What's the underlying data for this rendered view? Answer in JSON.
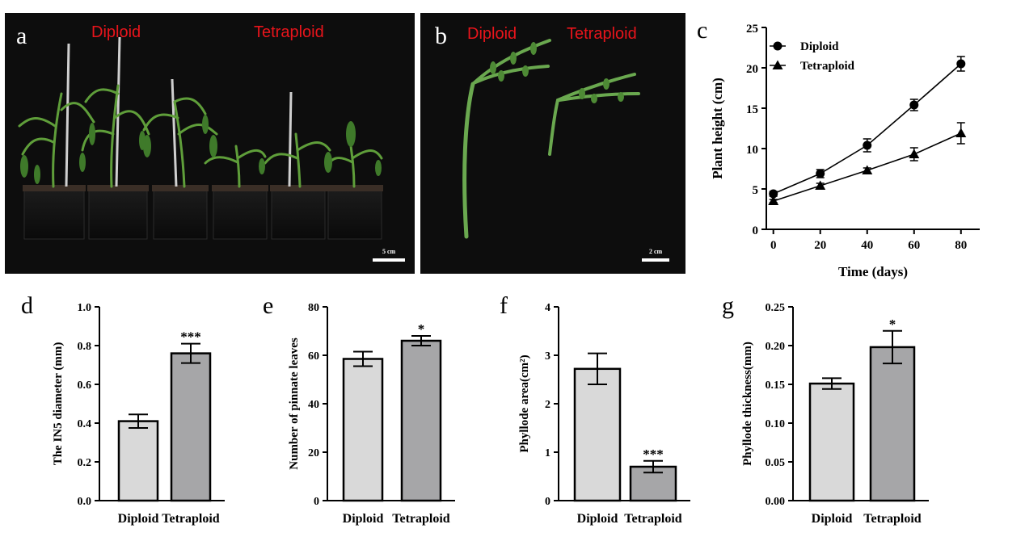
{
  "panel_a": {
    "letter": "a",
    "label_left": "Diploid",
    "label_right": "Tetraploid",
    "scale": "5 cm"
  },
  "panel_b": {
    "letter": "b",
    "label_left": "Diploid",
    "label_right": "Tetraploid",
    "scale": "2 cm"
  },
  "colors": {
    "diploid_bar": "#d9d9d9",
    "tetraploid_bar": "#a6a6a8",
    "photo_background": "#0d0d0d",
    "photo_label": "#e8141b",
    "plant_green": "#5f9e3a"
  },
  "chart_data": [
    {
      "id": "c",
      "letter": "c",
      "type": "line",
      "xlabel": "Time (days)",
      "ylabel": "Plant height (cm)",
      "x": [
        0,
        20,
        40,
        60,
        80
      ],
      "xticks": [
        "0",
        "20",
        "40",
        "60",
        "80"
      ],
      "xlim": [
        -3,
        88
      ],
      "ylim": [
        0,
        25
      ],
      "yticks": [
        "0",
        "5",
        "10",
        "15",
        "20",
        "25"
      ],
      "legend_position": "top-left",
      "series": [
        {
          "name": "Diploid",
          "marker": "circle",
          "values": [
            4.4,
            6.9,
            10.4,
            15.4,
            20.5
          ],
          "errors": [
            0.3,
            0.5,
            0.8,
            0.7,
            0.9
          ]
        },
        {
          "name": "Tetraploid",
          "marker": "triangle",
          "values": [
            3.5,
            5.4,
            7.3,
            9.3,
            11.9
          ],
          "errors": [
            0.2,
            0.3,
            0.3,
            0.8,
            1.3
          ]
        }
      ]
    },
    {
      "id": "d",
      "letter": "d",
      "type": "bar",
      "categories": [
        "Diploid",
        "Tetraploid"
      ],
      "values": [
        0.41,
        0.76
      ],
      "errors": [
        0.035,
        0.05
      ],
      "significance": [
        "",
        "***"
      ],
      "ylabel": "The IN5 diameter (mm)",
      "ylim": [
        0,
        1.0
      ],
      "yticks": [
        "0.0",
        "0.2",
        "0.4",
        "0.6",
        "0.8",
        "1.0"
      ]
    },
    {
      "id": "e",
      "letter": "e",
      "type": "bar",
      "categories": [
        "Diploid",
        "Tetraploid"
      ],
      "values": [
        58.5,
        66
      ],
      "errors": [
        3.0,
        2.0
      ],
      "significance": [
        "",
        "*"
      ],
      "ylabel": "Number of pinnate leaves",
      "ylim": [
        0,
        80
      ],
      "yticks": [
        "0",
        "20",
        "40",
        "60",
        "80"
      ]
    },
    {
      "id": "f",
      "letter": "f",
      "type": "bar",
      "categories": [
        "Diploid",
        "Tetraploid"
      ],
      "values": [
        2.72,
        0.7
      ],
      "errors": [
        0.32,
        0.12
      ],
      "significance": [
        "",
        "***"
      ],
      "ylabel": "Phyllode area(cm²)",
      "ylim": [
        0,
        4
      ],
      "yticks": [
        "0",
        "1",
        "2",
        "3",
        "4"
      ]
    },
    {
      "id": "g",
      "letter": "g",
      "type": "bar",
      "categories": [
        "Diploid",
        "Tetraploid"
      ],
      "values": [
        0.151,
        0.198
      ],
      "errors": [
        0.007,
        0.021
      ],
      "significance": [
        "",
        "*"
      ],
      "ylabel": "Phyllode thickness(mm)",
      "ylim": [
        0,
        0.25
      ],
      "yticks": [
        "0.00",
        "0.05",
        "0.10",
        "0.15",
        "0.20",
        "0.25"
      ]
    }
  ]
}
